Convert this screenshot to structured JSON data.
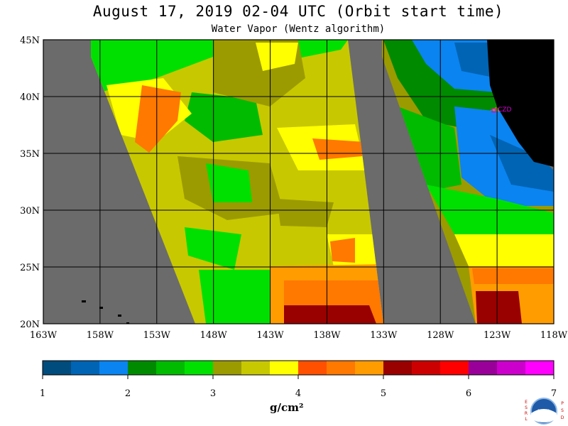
{
  "title": "August 17, 2019  02-04 UTC  (Orbit start time)",
  "subtitle": "Water Vapor (Wentz algorithm)",
  "map": {
    "lat_labels": [
      "45N",
      "40N",
      "35N",
      "30N",
      "25N",
      "20N"
    ],
    "lon_labels": [
      "163W",
      "158W",
      "153W",
      "148W",
      "143W",
      "138W",
      "133W",
      "128W",
      "123W",
      "118W"
    ],
    "station_label": "CZD",
    "colors": {
      "no_data": "#6b6b6b",
      "land": "#000000",
      "grid": "#000000",
      "station": "#dd00dd"
    }
  },
  "colorbar": {
    "tick_labels": [
      "1",
      "2",
      "3",
      "4",
      "5",
      "6",
      "7"
    ],
    "unit_label": "g/cm²",
    "colors": [
      "#004c7c",
      "#0064b4",
      "#0a84f0",
      "#008a00",
      "#00bb00",
      "#00e000",
      "#9b9b00",
      "#c8c800",
      "#ffff00",
      "#ff5000",
      "#ff7800",
      "#ff9c00",
      "#990000",
      "#cc0000",
      "#ff0000",
      "#990099",
      "#cc00cc",
      "#ff00ff"
    ]
  },
  "logo": {
    "left_text": "ESRL",
    "right_text": "PSD",
    "center_text": "NOAA"
  }
}
